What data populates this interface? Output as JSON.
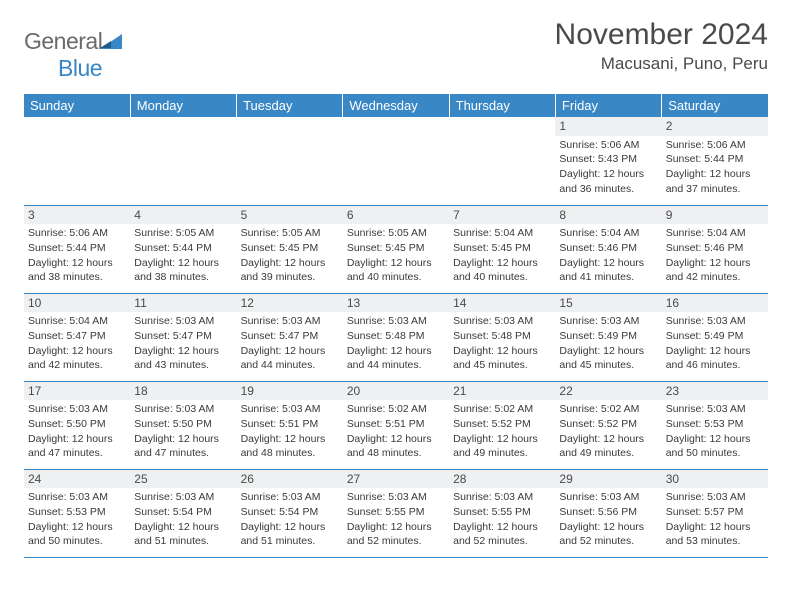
{
  "logo": {
    "general": "General",
    "blue": "Blue"
  },
  "title": "November 2024",
  "location": "Macusani, Puno, Peru",
  "colors": {
    "header_bg": "#3a87c6",
    "header_text": "#ffffff",
    "daynum_bg": "#eef0f2",
    "rule": "#3a87c6",
    "text": "#3a3a3a",
    "logo_gray": "#6b6b6b",
    "logo_blue": "#3a87c6",
    "page_bg": "#ffffff"
  },
  "typography": {
    "title_fontsize": 30,
    "location_fontsize": 17,
    "dayheader_fontsize": 13,
    "daynum_fontsize": 12,
    "body_fontsize": 10.5
  },
  "dayHeaders": [
    "Sunday",
    "Monday",
    "Tuesday",
    "Wednesday",
    "Thursday",
    "Friday",
    "Saturday"
  ],
  "weeks": [
    [
      {
        "n": "",
        "sr": "",
        "ss": "",
        "dl": ""
      },
      {
        "n": "",
        "sr": "",
        "ss": "",
        "dl": ""
      },
      {
        "n": "",
        "sr": "",
        "ss": "",
        "dl": ""
      },
      {
        "n": "",
        "sr": "",
        "ss": "",
        "dl": ""
      },
      {
        "n": "",
        "sr": "",
        "ss": "",
        "dl": ""
      },
      {
        "n": "1",
        "sr": "Sunrise: 5:06 AM",
        "ss": "Sunset: 5:43 PM",
        "dl": "Daylight: 12 hours and 36 minutes."
      },
      {
        "n": "2",
        "sr": "Sunrise: 5:06 AM",
        "ss": "Sunset: 5:44 PM",
        "dl": "Daylight: 12 hours and 37 minutes."
      }
    ],
    [
      {
        "n": "3",
        "sr": "Sunrise: 5:06 AM",
        "ss": "Sunset: 5:44 PM",
        "dl": "Daylight: 12 hours and 38 minutes."
      },
      {
        "n": "4",
        "sr": "Sunrise: 5:05 AM",
        "ss": "Sunset: 5:44 PM",
        "dl": "Daylight: 12 hours and 38 minutes."
      },
      {
        "n": "5",
        "sr": "Sunrise: 5:05 AM",
        "ss": "Sunset: 5:45 PM",
        "dl": "Daylight: 12 hours and 39 minutes."
      },
      {
        "n": "6",
        "sr": "Sunrise: 5:05 AM",
        "ss": "Sunset: 5:45 PM",
        "dl": "Daylight: 12 hours and 40 minutes."
      },
      {
        "n": "7",
        "sr": "Sunrise: 5:04 AM",
        "ss": "Sunset: 5:45 PM",
        "dl": "Daylight: 12 hours and 40 minutes."
      },
      {
        "n": "8",
        "sr": "Sunrise: 5:04 AM",
        "ss": "Sunset: 5:46 PM",
        "dl": "Daylight: 12 hours and 41 minutes."
      },
      {
        "n": "9",
        "sr": "Sunrise: 5:04 AM",
        "ss": "Sunset: 5:46 PM",
        "dl": "Daylight: 12 hours and 42 minutes."
      }
    ],
    [
      {
        "n": "10",
        "sr": "Sunrise: 5:04 AM",
        "ss": "Sunset: 5:47 PM",
        "dl": "Daylight: 12 hours and 42 minutes."
      },
      {
        "n": "11",
        "sr": "Sunrise: 5:03 AM",
        "ss": "Sunset: 5:47 PM",
        "dl": "Daylight: 12 hours and 43 minutes."
      },
      {
        "n": "12",
        "sr": "Sunrise: 5:03 AM",
        "ss": "Sunset: 5:47 PM",
        "dl": "Daylight: 12 hours and 44 minutes."
      },
      {
        "n": "13",
        "sr": "Sunrise: 5:03 AM",
        "ss": "Sunset: 5:48 PM",
        "dl": "Daylight: 12 hours and 44 minutes."
      },
      {
        "n": "14",
        "sr": "Sunrise: 5:03 AM",
        "ss": "Sunset: 5:48 PM",
        "dl": "Daylight: 12 hours and 45 minutes."
      },
      {
        "n": "15",
        "sr": "Sunrise: 5:03 AM",
        "ss": "Sunset: 5:49 PM",
        "dl": "Daylight: 12 hours and 45 minutes."
      },
      {
        "n": "16",
        "sr": "Sunrise: 5:03 AM",
        "ss": "Sunset: 5:49 PM",
        "dl": "Daylight: 12 hours and 46 minutes."
      }
    ],
    [
      {
        "n": "17",
        "sr": "Sunrise: 5:03 AM",
        "ss": "Sunset: 5:50 PM",
        "dl": "Daylight: 12 hours and 47 minutes."
      },
      {
        "n": "18",
        "sr": "Sunrise: 5:03 AM",
        "ss": "Sunset: 5:50 PM",
        "dl": "Daylight: 12 hours and 47 minutes."
      },
      {
        "n": "19",
        "sr": "Sunrise: 5:03 AM",
        "ss": "Sunset: 5:51 PM",
        "dl": "Daylight: 12 hours and 48 minutes."
      },
      {
        "n": "20",
        "sr": "Sunrise: 5:02 AM",
        "ss": "Sunset: 5:51 PM",
        "dl": "Daylight: 12 hours and 48 minutes."
      },
      {
        "n": "21",
        "sr": "Sunrise: 5:02 AM",
        "ss": "Sunset: 5:52 PM",
        "dl": "Daylight: 12 hours and 49 minutes."
      },
      {
        "n": "22",
        "sr": "Sunrise: 5:02 AM",
        "ss": "Sunset: 5:52 PM",
        "dl": "Daylight: 12 hours and 49 minutes."
      },
      {
        "n": "23",
        "sr": "Sunrise: 5:03 AM",
        "ss": "Sunset: 5:53 PM",
        "dl": "Daylight: 12 hours and 50 minutes."
      }
    ],
    [
      {
        "n": "24",
        "sr": "Sunrise: 5:03 AM",
        "ss": "Sunset: 5:53 PM",
        "dl": "Daylight: 12 hours and 50 minutes."
      },
      {
        "n": "25",
        "sr": "Sunrise: 5:03 AM",
        "ss": "Sunset: 5:54 PM",
        "dl": "Daylight: 12 hours and 51 minutes."
      },
      {
        "n": "26",
        "sr": "Sunrise: 5:03 AM",
        "ss": "Sunset: 5:54 PM",
        "dl": "Daylight: 12 hours and 51 minutes."
      },
      {
        "n": "27",
        "sr": "Sunrise: 5:03 AM",
        "ss": "Sunset: 5:55 PM",
        "dl": "Daylight: 12 hours and 52 minutes."
      },
      {
        "n": "28",
        "sr": "Sunrise: 5:03 AM",
        "ss": "Sunset: 5:55 PM",
        "dl": "Daylight: 12 hours and 52 minutes."
      },
      {
        "n": "29",
        "sr": "Sunrise: 5:03 AM",
        "ss": "Sunset: 5:56 PM",
        "dl": "Daylight: 12 hours and 52 minutes."
      },
      {
        "n": "30",
        "sr": "Sunrise: 5:03 AM",
        "ss": "Sunset: 5:57 PM",
        "dl": "Daylight: 12 hours and 53 minutes."
      }
    ]
  ]
}
